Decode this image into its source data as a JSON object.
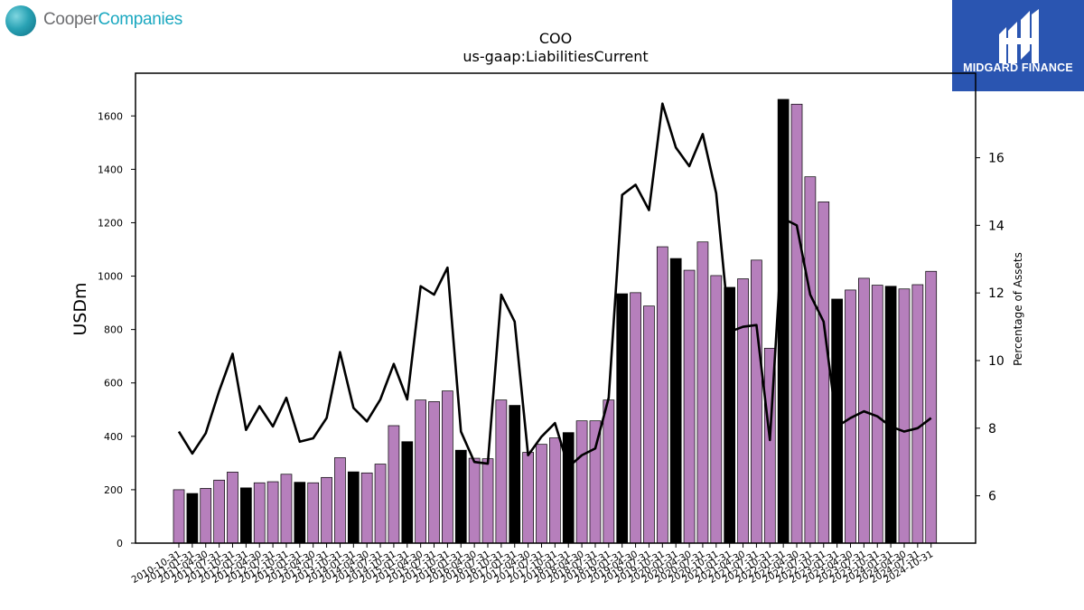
{
  "branding": {
    "left_logo_part1": "Cooper",
    "left_logo_part2": "Companies",
    "right_logo_text": "MIDGARD FINANCE",
    "right_logo_bg": "#2a55b1"
  },
  "colors": {
    "bar_default": "#b67fbc",
    "bar_highlight": "#000000",
    "line": "#000000"
  },
  "chart_data": {
    "type": "bar",
    "title": "COO",
    "subtitle": "us-gaap:LiabilitiesCurrent",
    "ylabel": "USDm",
    "y2label": "Percentage of Assets",
    "ylim": [
      0,
      1760
    ],
    "y2lim": [
      4.6,
      18.5
    ],
    "yticks": [
      0,
      200,
      400,
      600,
      800,
      1000,
      1200,
      1400,
      1600
    ],
    "y2ticks": [
      6,
      8,
      10,
      12,
      14,
      16
    ],
    "categories": [
      "2010-10-31",
      "2011-01-31",
      "2011-04-30",
      "2011-07-31",
      "2011-10-31",
      "2012-01-31",
      "2012-04-30",
      "2012-07-31",
      "2012-10-31",
      "2013-01-31",
      "2013-04-30",
      "2013-07-31",
      "2013-10-31",
      "2014-01-31",
      "2014-04-30",
      "2014-07-31",
      "2014-10-31",
      "2015-01-31",
      "2015-04-30",
      "2015-07-31",
      "2015-10-31",
      "2016-01-31",
      "2016-04-30",
      "2016-07-31",
      "2016-10-31",
      "2017-01-31",
      "2017-04-30",
      "2017-07-31",
      "2017-10-31",
      "2018-01-31",
      "2018-04-30",
      "2018-07-31",
      "2018-10-31",
      "2019-01-31",
      "2019-04-30",
      "2019-07-31",
      "2019-10-31",
      "2020-01-31",
      "2020-04-30",
      "2020-07-31",
      "2020-10-31",
      "2021-01-31",
      "2021-04-30",
      "2021-07-31",
      "2021-10-31",
      "2022-01-31",
      "2022-04-30",
      "2022-07-31",
      "2022-10-31",
      "2023-01-31",
      "2023-04-30",
      "2023-07-31",
      "2023-10-31",
      "2024-01-31",
      "2024-04-30",
      "2024-07-31",
      "2024-10-31"
    ],
    "series": [
      {
        "name": "",
        "kind": "bar",
        "values": [
          200,
          186,
          205,
          236,
          266,
          207,
          226,
          230,
          258,
          228,
          226,
          246,
          320,
          267,
          263,
          296,
          440,
          380,
          536,
          530,
          570,
          348,
          318,
          316,
          536,
          516,
          340,
          370,
          394,
          414,
          458,
          458,
          536,
          934,
          938,
          888,
          1110,
          1066,
          1022,
          1128,
          1002,
          958,
          990,
          1060,
          730,
          1662,
          1644,
          1372,
          1278,
          914,
          948,
          992,
          966,
          962,
          952,
          968,
          1018
        ],
        "highlight": [
          false,
          true,
          false,
          false,
          false,
          true,
          false,
          false,
          false,
          true,
          false,
          false,
          false,
          true,
          false,
          false,
          false,
          true,
          false,
          false,
          false,
          true,
          false,
          false,
          false,
          true,
          false,
          false,
          false,
          true,
          false,
          false,
          false,
          true,
          false,
          false,
          false,
          true,
          false,
          false,
          false,
          true,
          false,
          false,
          false,
          true,
          false,
          false,
          false,
          true,
          false,
          false,
          false,
          true,
          false,
          false,
          false
        ]
      },
      {
        "name": "",
        "kind": "line",
        "axis": "right",
        "values": [
          7.9,
          7.25,
          7.85,
          9.1,
          10.2,
          7.95,
          8.65,
          8.05,
          8.9,
          7.6,
          7.7,
          8.3,
          10.25,
          8.6,
          8.2,
          8.85,
          9.9,
          8.85,
          12.2,
          11.95,
          12.75,
          7.9,
          7.0,
          6.95,
          11.95,
          11.15,
          7.2,
          7.75,
          8.15,
          6.85,
          7.2,
          7.4,
          8.9,
          14.9,
          15.2,
          14.45,
          17.6,
          16.3,
          15.75,
          16.7,
          14.95,
          10.85,
          11.0,
          11.05,
          7.65,
          14.2,
          14.0,
          11.95,
          11.15,
          8.05,
          8.3,
          8.5,
          8.35,
          8.05,
          7.9,
          8.0,
          8.3
        ]
      }
    ]
  }
}
